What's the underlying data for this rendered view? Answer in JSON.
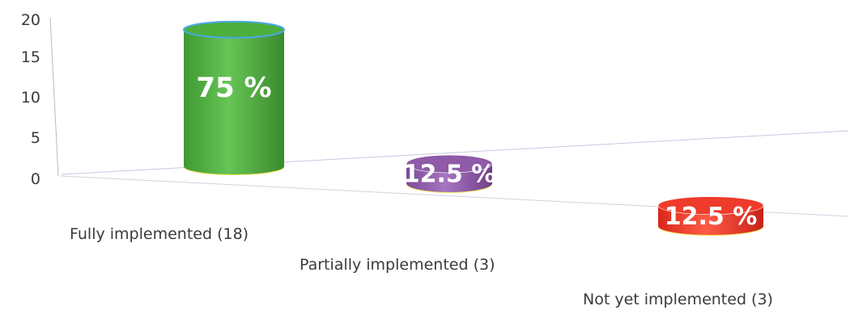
{
  "chart_data": {
    "type": "bar",
    "style": "3d-cylinder",
    "categories": [
      "Fully implemented (18)",
      "Partially implemented (3)",
      "Not yet implemented (3)"
    ],
    "series": [
      {
        "values": [
          18,
          3,
          3
        ]
      }
    ],
    "data_labels": [
      "75 %",
      "12.5 %",
      "12.5 %"
    ],
    "colors": [
      "#4caf3c",
      "#8f5aa8",
      "#ee3b2b"
    ],
    "y_ticks": [
      "0",
      "5",
      "10",
      "15",
      "20"
    ],
    "ylim": [
      0,
      20
    ],
    "title": "",
    "xlabel": "",
    "ylabel": "",
    "grid": false,
    "legend": "none"
  }
}
